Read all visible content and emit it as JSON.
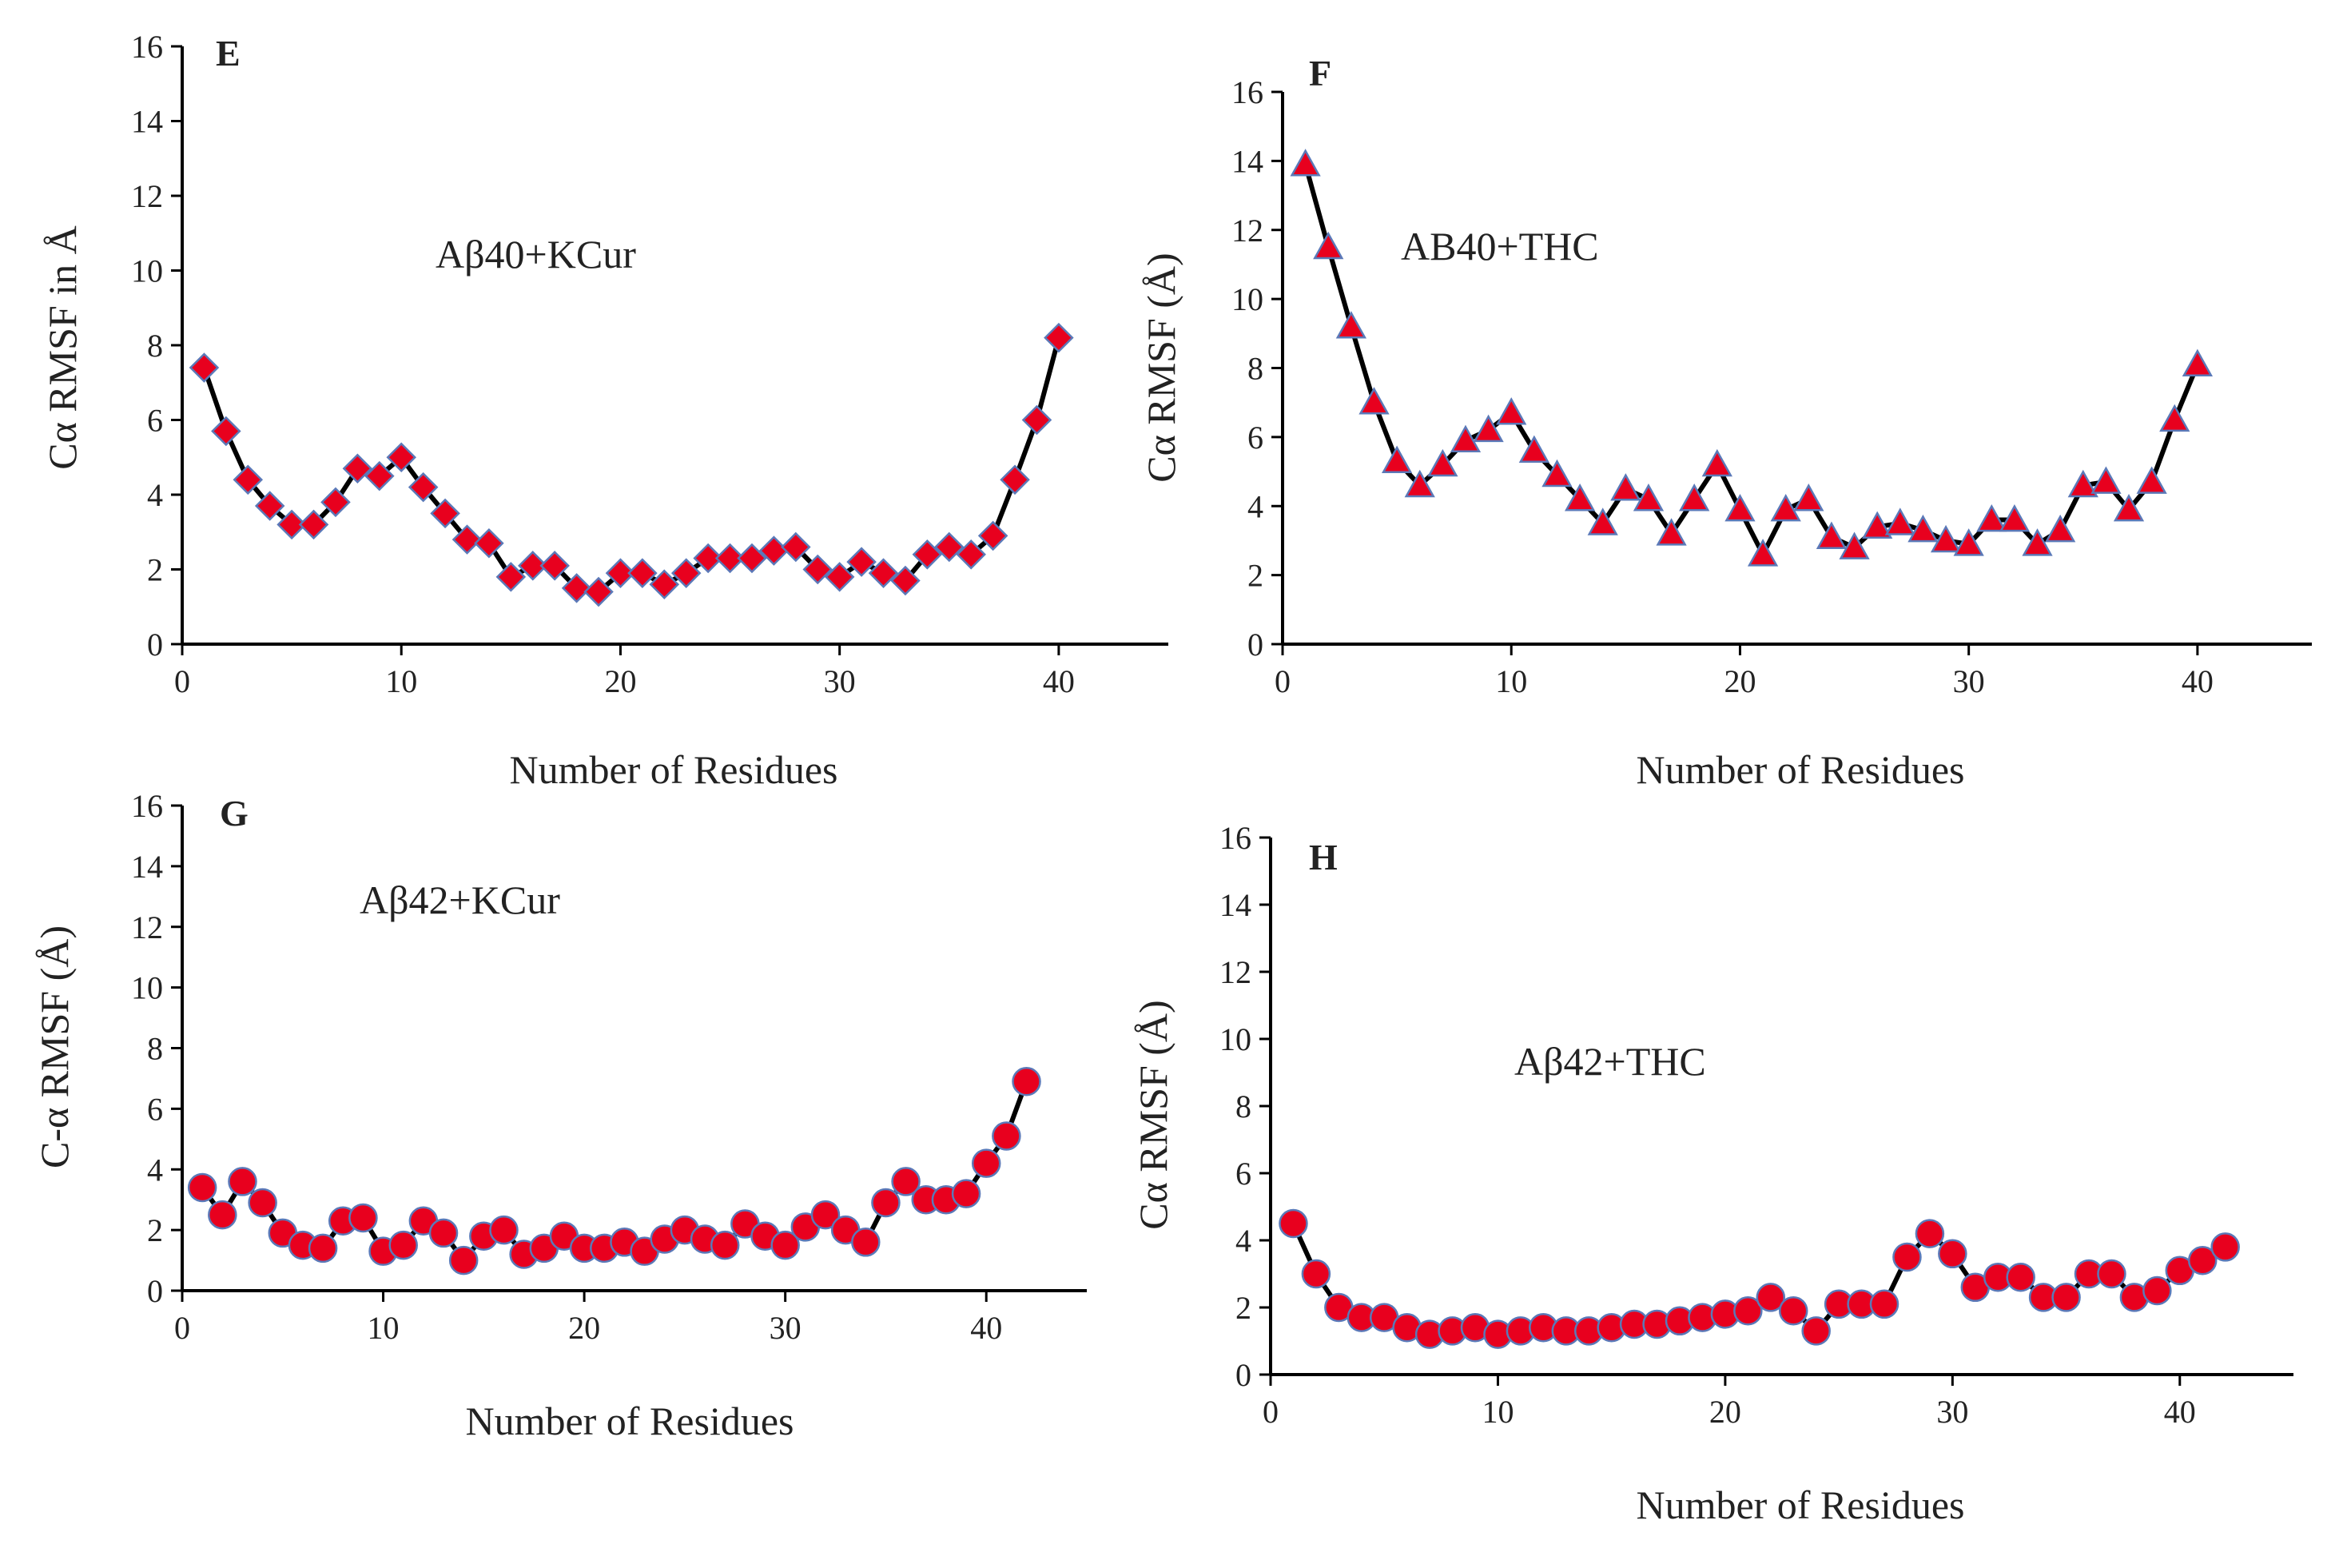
{
  "colors": {
    "marker_fill": "#e8001e",
    "marker_stroke": "#5b79b8",
    "line": "#000000",
    "axis": "#000000"
  },
  "chart_data": [
    {
      "panel": "E",
      "type": "line",
      "marker": "diamond",
      "annotation": "Aβ40+KCur",
      "xlabel": "Number of Residues",
      "ylabel": "Cα RMSF in Å",
      "xlim": [
        0,
        45
      ],
      "ylim": [
        0,
        16
      ],
      "xticks": [
        0,
        10,
        20,
        30,
        40
      ],
      "yticks": [
        0,
        2,
        4,
        6,
        8,
        10,
        12,
        14,
        16
      ],
      "x": [
        1,
        2,
        3,
        4,
        5,
        6,
        7,
        8,
        9,
        10,
        11,
        12,
        13,
        14,
        15,
        16,
        17,
        18,
        19,
        20,
        21,
        22,
        23,
        24,
        25,
        26,
        27,
        28,
        29,
        30,
        31,
        32,
        33,
        34,
        35,
        36,
        37,
        38,
        39,
        40
      ],
      "y": [
        7.4,
        5.7,
        4.4,
        3.7,
        3.2,
        3.2,
        3.8,
        4.7,
        4.5,
        5.0,
        4.2,
        3.5,
        2.8,
        2.7,
        1.8,
        2.1,
        2.1,
        1.5,
        1.4,
        1.9,
        1.9,
        1.6,
        1.9,
        2.3,
        2.3,
        2.3,
        2.5,
        2.6,
        2.0,
        1.8,
        2.2,
        1.9,
        1.7,
        2.4,
        2.6,
        2.4,
        2.9,
        4.4,
        6.0,
        8.2
      ]
    },
    {
      "panel": "F",
      "type": "line",
      "marker": "triangle",
      "annotation": "AB40+THC",
      "xlabel": "Number of Residues",
      "ylabel": "Cα RMSF (Å)",
      "xlim": [
        0,
        45
      ],
      "ylim": [
        0,
        16
      ],
      "xticks": [
        0,
        10,
        20,
        30,
        40
      ],
      "yticks": [
        0,
        2,
        4,
        6,
        8,
        10,
        12,
        14,
        16
      ],
      "x": [
        1,
        2,
        3,
        4,
        5,
        6,
        7,
        8,
        9,
        10,
        11,
        12,
        13,
        14,
        15,
        16,
        17,
        18,
        19,
        20,
        21,
        22,
        23,
        24,
        25,
        26,
        27,
        28,
        29,
        30,
        31,
        32,
        33,
        34,
        35,
        36,
        37,
        38,
        39,
        40
      ],
      "y": [
        13.9,
        11.5,
        9.2,
        7.0,
        5.3,
        4.6,
        5.2,
        5.9,
        6.2,
        6.7,
        5.6,
        4.9,
        4.2,
        3.5,
        4.5,
        4.2,
        3.2,
        4.2,
        5.2,
        3.9,
        2.6,
        3.9,
        4.2,
        3.1,
        2.8,
        3.4,
        3.5,
        3.3,
        3.0,
        2.9,
        3.6,
        3.6,
        2.9,
        3.3,
        4.6,
        4.7,
        3.9,
        4.7,
        6.5,
        8.1
      ]
    },
    {
      "panel": "G",
      "type": "line",
      "marker": "circle",
      "annotation": "Aβ42+KCur",
      "xlabel": "Number of Residues",
      "ylabel": "C-α RMSF (Å)",
      "xlim": [
        0,
        45
      ],
      "ylim": [
        0,
        16
      ],
      "xticks": [
        0,
        10,
        20,
        30,
        40
      ],
      "yticks": [
        0,
        2,
        4,
        6,
        8,
        10,
        12,
        14,
        16
      ],
      "x": [
        1,
        2,
        3,
        4,
        5,
        6,
        7,
        8,
        9,
        10,
        11,
        12,
        13,
        14,
        15,
        16,
        17,
        18,
        19,
        20,
        21,
        22,
        23,
        24,
        25,
        26,
        27,
        28,
        29,
        30,
        31,
        32,
        33,
        34,
        35,
        36,
        37,
        38,
        39,
        40,
        41,
        42
      ],
      "y": [
        3.4,
        2.5,
        3.6,
        2.9,
        1.9,
        1.5,
        1.4,
        2.3,
        2.4,
        1.3,
        1.5,
        2.3,
        1.9,
        1.0,
        1.8,
        2.0,
        1.2,
        1.4,
        1.8,
        1.4,
        1.4,
        1.6,
        1.3,
        1.7,
        2.0,
        1.7,
        1.5,
        2.2,
        1.8,
        1.5,
        2.1,
        2.5,
        2.0,
        1.6,
        2.9,
        3.6,
        3.0,
        3.0,
        3.2,
        4.2,
        5.1,
        6.9
      ]
    },
    {
      "panel": "H",
      "type": "line",
      "marker": "circle",
      "annotation": "Aβ42+THC",
      "xlabel": "Number of Residues",
      "ylabel": "Cα RMSF (Å)",
      "xlim": [
        0,
        45
      ],
      "ylim": [
        0,
        16
      ],
      "xticks": [
        0,
        10,
        20,
        30,
        40
      ],
      "yticks": [
        0,
        2,
        4,
        6,
        8,
        10,
        12,
        14,
        16
      ],
      "x": [
        1,
        2,
        3,
        4,
        5,
        6,
        7,
        8,
        9,
        10,
        11,
        12,
        13,
        14,
        15,
        16,
        17,
        18,
        19,
        20,
        21,
        22,
        23,
        24,
        25,
        26,
        27,
        28,
        29,
        30,
        31,
        32,
        33,
        34,
        35,
        36,
        37,
        38,
        39,
        40,
        41,
        42
      ],
      "y": [
        4.5,
        3.0,
        2.0,
        1.7,
        1.7,
        1.4,
        1.2,
        1.3,
        1.4,
        1.2,
        1.3,
        1.4,
        1.3,
        1.3,
        1.4,
        1.5,
        1.5,
        1.6,
        1.7,
        1.8,
        1.9,
        2.3,
        1.9,
        1.3,
        2.1,
        2.1,
        2.1,
        3.5,
        4.2,
        3.6,
        2.6,
        2.9,
        2.9,
        2.3,
        2.3,
        3.0,
        3.0,
        2.3,
        2.5,
        3.1,
        3.4,
        3.8
      ]
    }
  ]
}
